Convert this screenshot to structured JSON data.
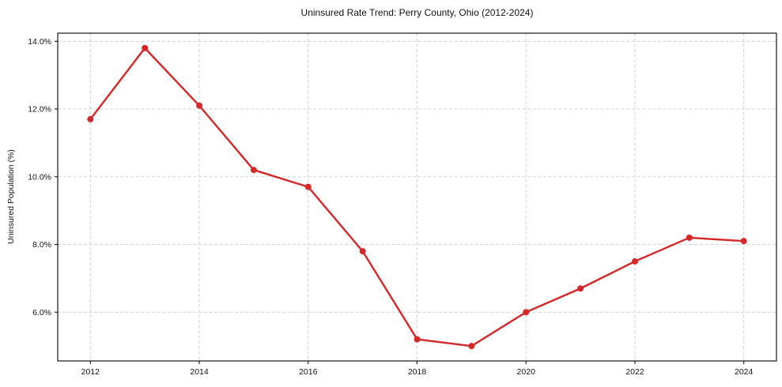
{
  "chart_data": {
    "type": "line",
    "title": "Uninsured Rate Trend: Perry County, Ohio (2012-2024)",
    "xlabel": "",
    "ylabel": "Uninsured Population (%)",
    "x": [
      2012,
      2013,
      2014,
      2015,
      2016,
      2017,
      2018,
      2019,
      2020,
      2021,
      2022,
      2023,
      2024
    ],
    "series": [
      {
        "name": "Uninsured Rate",
        "values": [
          11.7,
          13.8,
          12.1,
          10.2,
          9.7,
          7.8,
          5.2,
          5.0,
          6.0,
          6.7,
          7.5,
          8.2,
          8.1
        ]
      }
    ],
    "xlim": [
      2011.4,
      2024.6
    ],
    "ylim": [
      4.56,
      14.24
    ],
    "xticks": [
      {
        "value": 2012,
        "label": "2012"
      },
      {
        "value": 2014,
        "label": "2014"
      },
      {
        "value": 2016,
        "label": "2016"
      },
      {
        "value": 2018,
        "label": "2018"
      },
      {
        "value": 2020,
        "label": "2020"
      },
      {
        "value": 2022,
        "label": "2022"
      },
      {
        "value": 2024,
        "label": "2024"
      }
    ],
    "yticks": [
      {
        "value": 6,
        "label": "6.0%"
      },
      {
        "value": 8,
        "label": "8.0%"
      },
      {
        "value": 10,
        "label": "10.0%"
      },
      {
        "value": 12,
        "label": "12.0%"
      },
      {
        "value": 14,
        "label": "14.0%"
      }
    ],
    "colors": {
      "line": "#d62728",
      "marker": "#d62728",
      "grid": "#cccccc",
      "spine": "#000000",
      "text": "#111111",
      "background": "#ffffff"
    },
    "grid": true,
    "legend_position": "none",
    "marker_radius": 4
  }
}
